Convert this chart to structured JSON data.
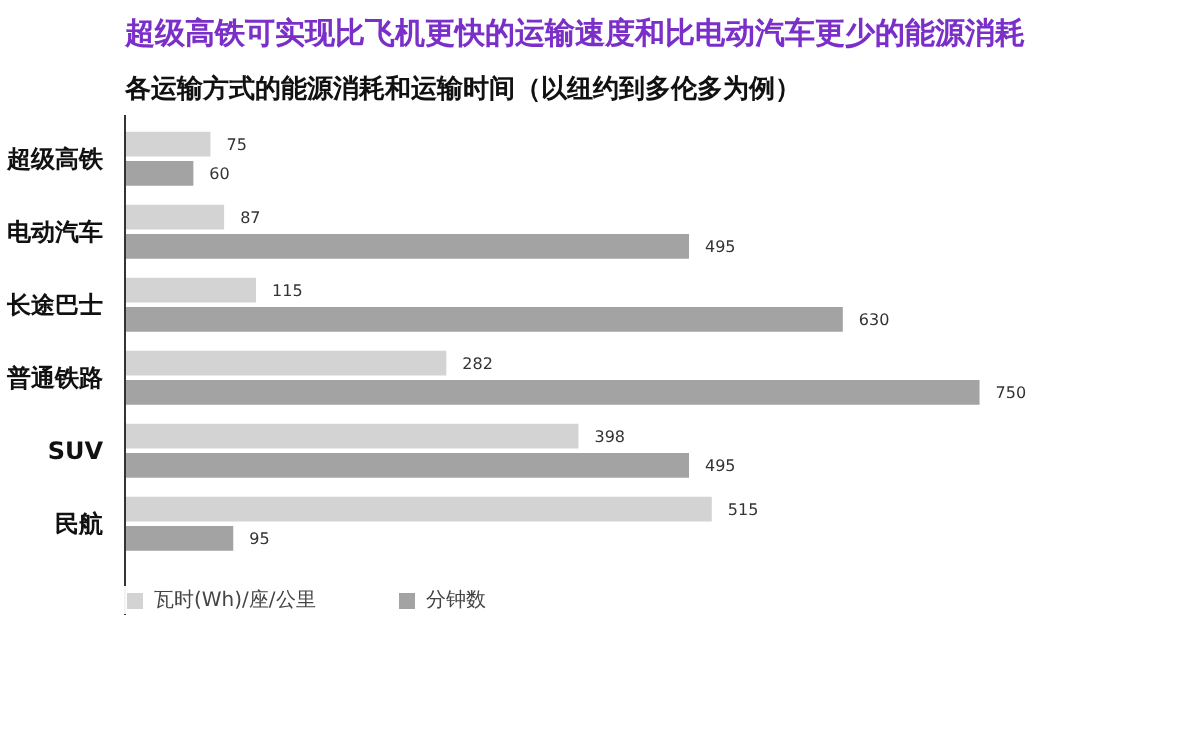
{
  "chart_data": {
    "type": "bar",
    "orientation": "horizontal",
    "title": "超级高铁可实现比飞机更快的运输速度和比电动汽车更少的能源消耗",
    "subtitle": "各运输方式的能源消耗和运输时间（以纽约到多伦多为例）",
    "categories": [
      "超级高铁",
      "电动汽车",
      "长途巴士",
      "普通铁路",
      "SUV",
      "民航"
    ],
    "series": [
      {
        "name": "瓦时(Wh)/座/公里",
        "color": "#d3d3d3",
        "values": [
          75,
          87,
          115,
          282,
          398,
          515
        ]
      },
      {
        "name": "分钟数",
        "color": "#a3a3a3",
        "values": [
          60,
          495,
          630,
          750,
          495,
          95
        ]
      }
    ],
    "data_labels": true,
    "legend": "bottom",
    "grid": false
  }
}
